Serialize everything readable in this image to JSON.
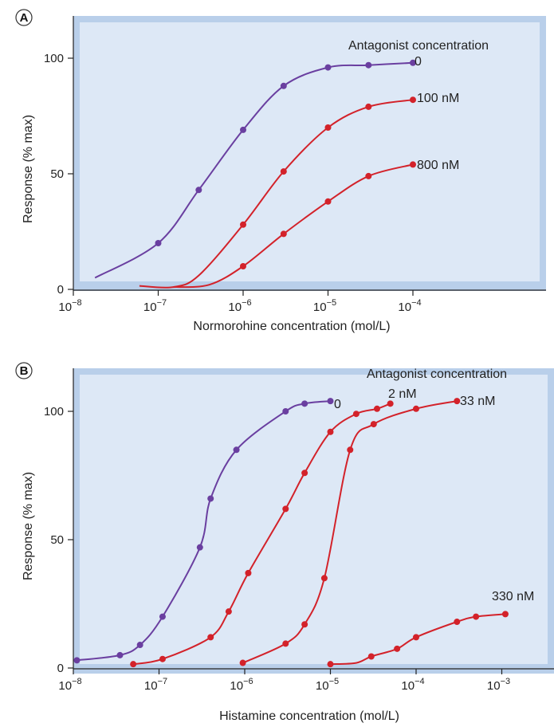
{
  "colors": {
    "agonist_only": "#6a3fa0",
    "with_antagonist": "#d3222a",
    "plot_bg": "#dde8f6",
    "plot_border": "#b9cfea"
  },
  "chart_data": [
    {
      "panel_label": "A",
      "type": "line",
      "title": "",
      "xlabel": "Normorohine concentration (mol/L)",
      "ylabel": "Response (% max)",
      "xscale": "log",
      "xlim": [
        1e-08,
        0.001
      ],
      "ylim": [
        0,
        100
      ],
      "x_ticks": [
        {
          "value": 1e-08,
          "base": "10",
          "exp": "−8"
        },
        {
          "value": 1e-07,
          "base": "10",
          "exp": "−7"
        },
        {
          "value": 1e-06,
          "base": "10",
          "exp": "−6"
        },
        {
          "value": 1e-05,
          "base": "10",
          "exp": "−5"
        },
        {
          "value": 0.0001,
          "base": "10",
          "exp": "−4"
        }
      ],
      "y_ticks": [
        {
          "value": 0,
          "label": "0"
        },
        {
          "value": 50,
          "label": "50"
        },
        {
          "value": 100,
          "label": "100"
        }
      ],
      "legend_title": "Antagonist concentration",
      "series": [
        {
          "name": "0",
          "color_key": "agonist_only",
          "points": [
            [
              1e-07,
              20
            ],
            [
              3e-07,
              43
            ],
            [
              1e-06,
              69
            ],
            [
              3e-06,
              88
            ],
            [
              1e-05,
              96
            ],
            [
              3e-05,
              97
            ],
            [
              0.0001,
              98
            ]
          ],
          "curve": [
            [
              1.8e-08,
              5
            ],
            [
              1e-07,
              20
            ],
            [
              3e-07,
              43
            ],
            [
              1e-06,
              69
            ],
            [
              3e-06,
              88
            ],
            [
              1e-05,
              96
            ],
            [
              3e-05,
              97
            ],
            [
              0.0001,
              98
            ]
          ]
        },
        {
          "name": "100 nM",
          "color_key": "with_antagonist",
          "points": [
            [
              1e-06,
              28
            ],
            [
              3e-06,
              51
            ],
            [
              1e-05,
              70
            ],
            [
              3e-05,
              79
            ],
            [
              0.0001,
              82
            ]
          ],
          "curve": [
            [
              6e-08,
              1.5
            ],
            [
              1.5e-07,
              1
            ],
            [
              3e-07,
              6
            ],
            [
              1e-06,
              28
            ],
            [
              3e-06,
              51
            ],
            [
              1e-05,
              70
            ],
            [
              3e-05,
              79
            ],
            [
              0.0001,
              82
            ]
          ]
        },
        {
          "name": "800 nM",
          "color_key": "with_antagonist",
          "points": [
            [
              1e-06,
              10
            ],
            [
              3e-06,
              24
            ],
            [
              1e-05,
              38
            ],
            [
              3e-05,
              49
            ],
            [
              0.0001,
              54
            ]
          ],
          "curve": [
            [
              1.5e-07,
              1
            ],
            [
              4e-07,
              2
            ],
            [
              1e-06,
              10
            ],
            [
              3e-06,
              24
            ],
            [
              1e-05,
              38
            ],
            [
              3e-05,
              49
            ],
            [
              0.0001,
              54
            ]
          ]
        }
      ]
    },
    {
      "panel_label": "B",
      "type": "line",
      "title": "",
      "xlabel": "Histamine concentration (mol/L)",
      "ylabel": "Response (% max)",
      "xscale": "log",
      "xlim": [
        1e-08,
        0.005
      ],
      "ylim": [
        0,
        100
      ],
      "x_ticks": [
        {
          "value": 1e-08,
          "base": "10",
          "exp": "−8"
        },
        {
          "value": 1e-07,
          "base": "10",
          "exp": "−7"
        },
        {
          "value": 1e-06,
          "base": "10",
          "exp": "−6"
        },
        {
          "value": 1e-05,
          "base": "10",
          "exp": "−5"
        },
        {
          "value": 0.0001,
          "base": "10",
          "exp": "−4"
        },
        {
          "value": 0.001,
          "base": "10",
          "exp": "−3"
        }
      ],
      "y_ticks": [
        {
          "value": 0,
          "label": "0"
        },
        {
          "value": 50,
          "label": "50"
        },
        {
          "value": 100,
          "label": "100"
        }
      ],
      "legend_title": "Antagonist concentration",
      "series": [
        {
          "name": "0",
          "color_key": "agonist_only",
          "points": [
            [
              1.1e-08,
              3
            ],
            [
              3.5e-08,
              5
            ],
            [
              6e-08,
              9
            ],
            [
              1.1e-07,
              20
            ],
            [
              3e-07,
              47
            ],
            [
              4e-07,
              66
            ],
            [
              8e-07,
              85
            ],
            [
              3e-06,
              100
            ],
            [
              5e-06,
              103
            ],
            [
              1e-05,
              104
            ]
          ],
          "curve": [
            [
              1.1e-08,
              3
            ],
            [
              3.5e-08,
              5
            ],
            [
              6e-08,
              9
            ],
            [
              1.1e-07,
              20
            ],
            [
              3e-07,
              47
            ],
            [
              4e-07,
              66
            ],
            [
              8e-07,
              85
            ],
            [
              3e-06,
              100
            ],
            [
              5e-06,
              103
            ],
            [
              1e-05,
              104
            ]
          ]
        },
        {
          "name": "2 nM",
          "color_key": "with_antagonist",
          "points": [
            [
              5e-08,
              1.5
            ],
            [
              1.1e-07,
              3.5
            ],
            [
              4e-07,
              12
            ],
            [
              6.5e-07,
              22
            ],
            [
              1.1e-06,
              37
            ],
            [
              3e-06,
              62
            ],
            [
              5e-06,
              76
            ],
            [
              1e-05,
              92
            ],
            [
              2e-05,
              99
            ],
            [
              3.5e-05,
              101
            ],
            [
              5e-05,
              103
            ]
          ],
          "curve": [
            [
              5e-08,
              1.5
            ],
            [
              1.1e-07,
              3.5
            ],
            [
              4e-07,
              12
            ],
            [
              6.5e-07,
              22
            ],
            [
              1.1e-06,
              37
            ],
            [
              3e-06,
              62
            ],
            [
              5e-06,
              76
            ],
            [
              1e-05,
              92
            ],
            [
              2e-05,
              99
            ],
            [
              3.5e-05,
              101
            ],
            [
              5e-05,
              103
            ]
          ]
        },
        {
          "name": "33 nM",
          "color_key": "with_antagonist",
          "points": [
            [
              9.5e-07,
              2
            ],
            [
              3e-06,
              9.5
            ],
            [
              5e-06,
              17
            ],
            [
              8.5e-06,
              35
            ],
            [
              1.7e-05,
              85
            ],
            [
              3.2e-05,
              95
            ],
            [
              0.0001,
              101
            ],
            [
              0.0003,
              104
            ]
          ],
          "curve": [
            [
              9.5e-07,
              2
            ],
            [
              3e-06,
              9.5
            ],
            [
              5e-06,
              17
            ],
            [
              8.5e-06,
              35
            ],
            [
              1.7e-05,
              85
            ],
            [
              3.2e-05,
              95
            ],
            [
              0.0001,
              101
            ],
            [
              0.0003,
              104
            ]
          ]
        },
        {
          "name": "330 nM",
          "color_key": "with_antagonist",
          "points": [
            [
              1e-05,
              1.5
            ],
            [
              3e-05,
              4.5
            ],
            [
              6e-05,
              7.5
            ],
            [
              0.0001,
              12
            ],
            [
              0.0003,
              18
            ],
            [
              0.0005,
              20
            ],
            [
              0.0011,
              21
            ]
          ],
          "curve": [
            [
              1e-05,
              1.5
            ],
            [
              2e-05,
              2
            ],
            [
              3e-05,
              4.5
            ],
            [
              6e-05,
              7.5
            ],
            [
              0.0001,
              12
            ],
            [
              0.0003,
              18
            ],
            [
              0.0005,
              20
            ],
            [
              0.0011,
              21
            ]
          ]
        }
      ]
    }
  ]
}
